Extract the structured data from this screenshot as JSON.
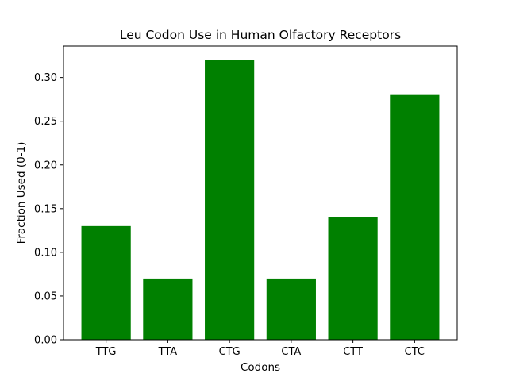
{
  "chart_data": {
    "type": "bar",
    "title": "Leu Codon Use in Human Olfactory Receptors",
    "xlabel": "Codons",
    "ylabel": "Fraction Used (0-1)",
    "categories": [
      "TTG",
      "TTA",
      "CTG",
      "CTA",
      "CTT",
      "CTC"
    ],
    "values": [
      0.13,
      0.07,
      0.32,
      0.07,
      0.14,
      0.28
    ],
    "ylim": [
      0,
      0.336
    ],
    "yticks": [
      "0.00",
      "0.05",
      "0.10",
      "0.15",
      "0.20",
      "0.25",
      "0.30"
    ],
    "bar_color": "#008000",
    "grid": false,
    "legend": "none"
  }
}
